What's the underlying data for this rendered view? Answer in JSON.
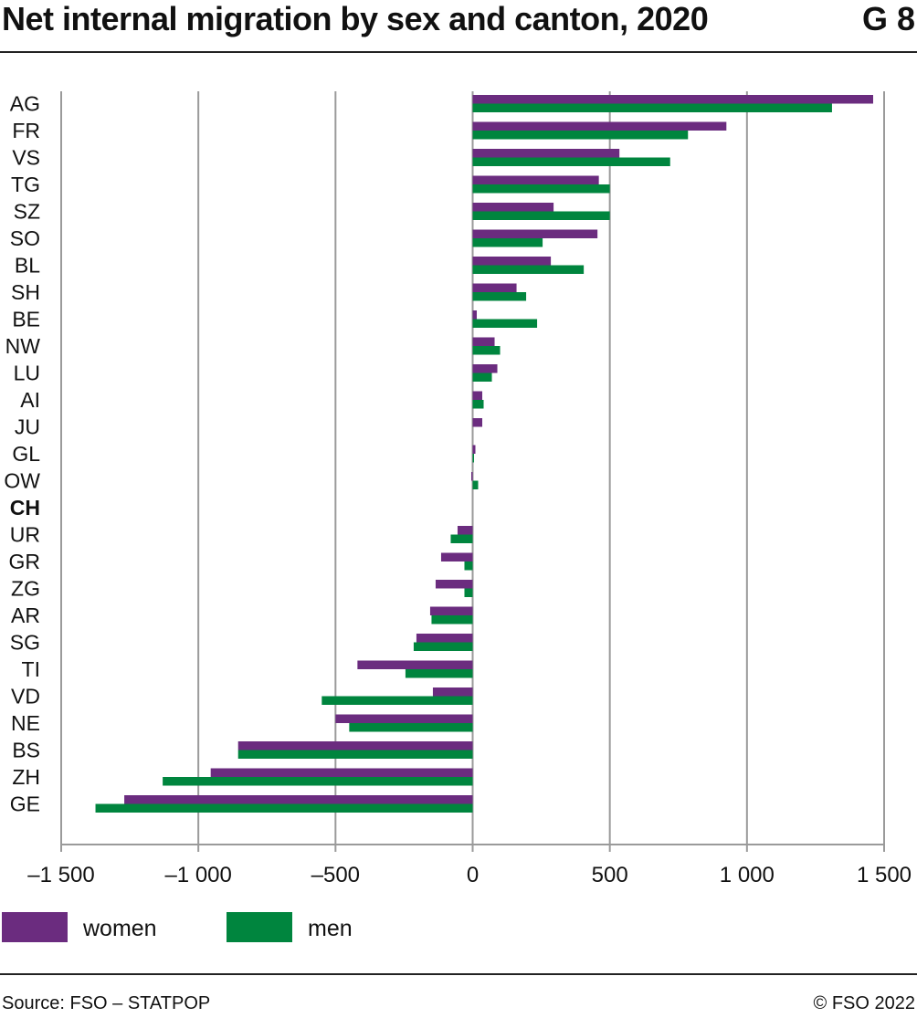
{
  "header": {
    "title": "Net internal migration by sex and canton, 2020",
    "code": "G 8"
  },
  "footer": {
    "source": "Source: FSO – STATPOP",
    "copyright": "© FSO 2022"
  },
  "colors": {
    "women": "#6b2c7f",
    "men": "#00853e",
    "grid": "#9a9a9a",
    "axis": "#9a9a9a"
  },
  "chart_data": {
    "type": "bar",
    "orientation": "horizontal",
    "title": "Net internal migration by sex and canton, 2020",
    "xlim": [
      -1500,
      1500
    ],
    "xticks": [
      -1500,
      -1000,
      -500,
      0,
      500,
      1000,
      1500
    ],
    "xtick_labels": [
      "–1 500",
      "–1 000",
      "–500",
      "0",
      "500",
      "1 000",
      "1 500"
    ],
    "grid": "vertical",
    "legend_position": "bottom-left",
    "categories": [
      "AG",
      "FR",
      "VS",
      "TG",
      "SZ",
      "SO",
      "BL",
      "SH",
      "BE",
      "NW",
      "LU",
      "AI",
      "JU",
      "GL",
      "OW",
      "CH",
      "UR",
      "GR",
      "ZG",
      "AR",
      "SG",
      "TI",
      "VD",
      "NE",
      "BS",
      "ZH",
      "GE"
    ],
    "bold_categories": [
      "CH"
    ],
    "series": [
      {
        "name": "women",
        "color": "#6b2c7f",
        "values": [
          1460,
          925,
          535,
          460,
          295,
          455,
          285,
          160,
          15,
          80,
          90,
          35,
          35,
          10,
          -5,
          0,
          -55,
          -115,
          -135,
          -155,
          -205,
          -420,
          -145,
          -500,
          -855,
          -955,
          -1270
        ]
      },
      {
        "name": "men",
        "color": "#00853e",
        "values": [
          1310,
          785,
          720,
          500,
          500,
          255,
          405,
          195,
          235,
          100,
          70,
          40,
          0,
          5,
          20,
          0,
          -80,
          -30,
          -30,
          -150,
          -215,
          -245,
          -550,
          -450,
          -855,
          -1130,
          -1375
        ]
      }
    ]
  }
}
